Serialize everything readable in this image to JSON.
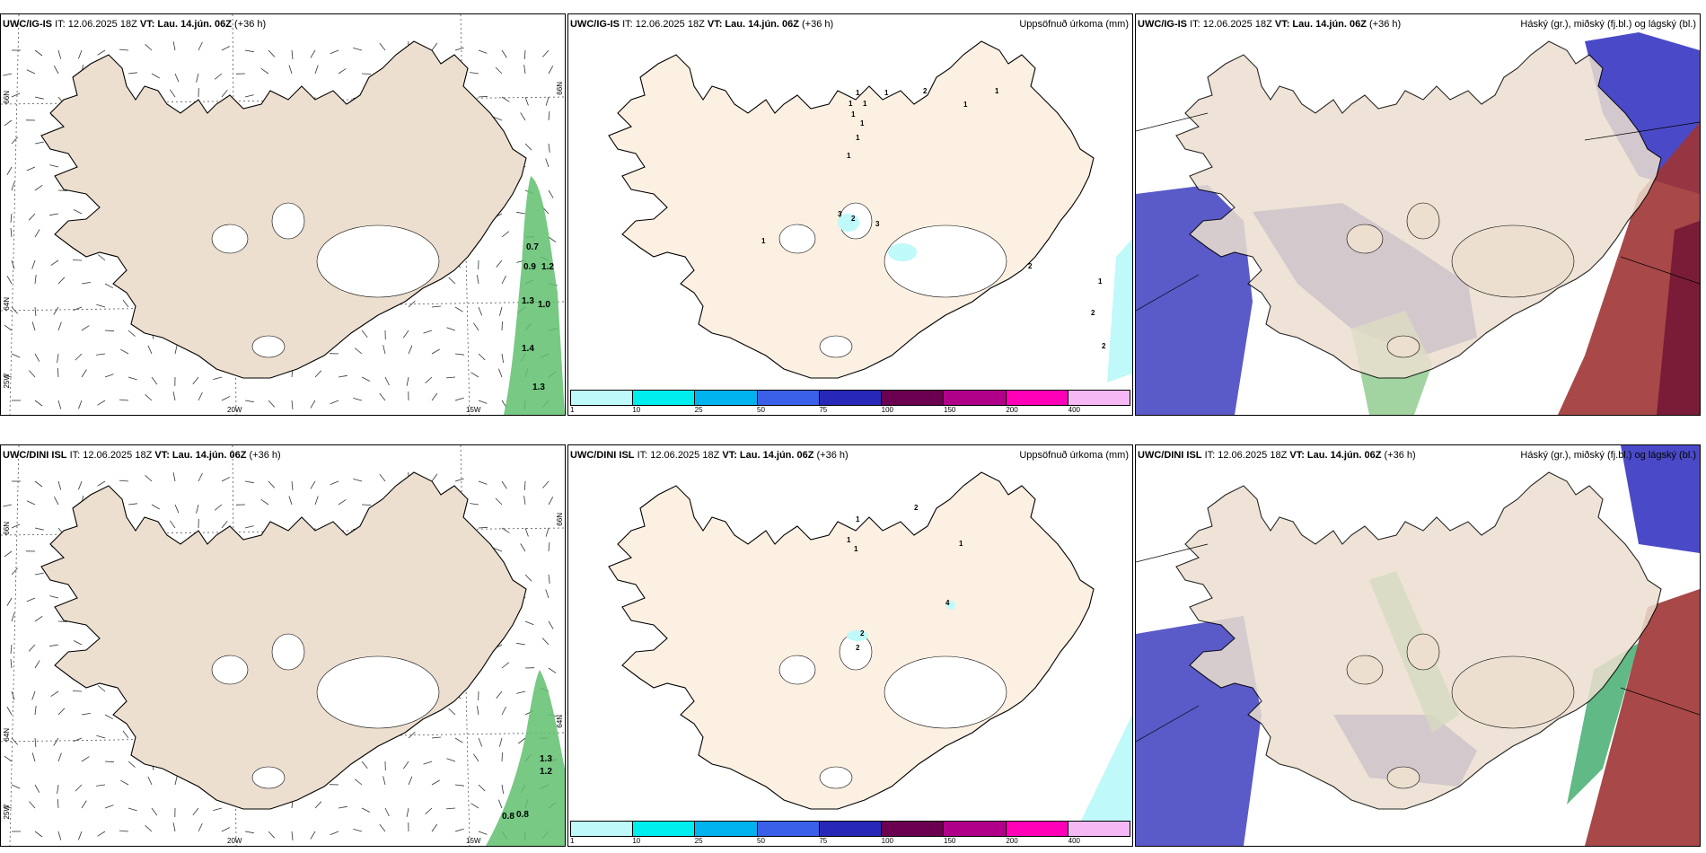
{
  "panels": [
    {
      "model": "UWC/IG-IS",
      "it": "IT: 12.06.2025 18Z",
      "vt_label": "VT:",
      "vt": "Lau. 14.jún. 06Z",
      "lead": "(+36 h)",
      "title": "",
      "kind": "wind"
    },
    {
      "model": "UWC/IG-IS",
      "it": "IT: 12.06.2025 18Z",
      "vt_label": "VT:",
      "vt": "Lau. 14.jún. 06Z",
      "lead": "(+36 h)",
      "title": "Uppsöfnuð úrkoma (mm)",
      "kind": "precip"
    },
    {
      "model": "UWC/IG-IS",
      "it": "IT: 12.06.2025 18Z",
      "vt_label": "VT:",
      "vt": "Lau. 14.jún. 06Z",
      "lead": "(+36 h)",
      "title": "Háský (gr.), miðský (fj.bl.) og lágský (bl.)",
      "kind": "cloud"
    },
    {
      "model": "UWC/DINI ISL",
      "it": "IT: 12.06.2025 18Z",
      "vt_label": "VT:",
      "vt": "Lau. 14.jún. 06Z",
      "lead": "(+36 h)",
      "title": "",
      "kind": "wind"
    },
    {
      "model": "UWC/DINI ISL",
      "it": "IT: 12.06.2025 18Z",
      "vt_label": "VT:",
      "vt": "Lau. 14.jún. 06Z",
      "lead": "(+36 h)",
      "title": "Uppsöfnuð úrkoma (mm)",
      "kind": "precip"
    },
    {
      "model": "UWC/DINI ISL",
      "it": "IT: 12.06.2025 18Z",
      "vt_label": "VT:",
      "vt": "Lau. 14.jún. 06Z",
      "lead": "(+36 h)",
      "title": "Háský (gr.), miðský (fj.bl.) og lágský (bl.)",
      "kind": "cloud"
    }
  ],
  "axes": {
    "lat66": "66N",
    "lat64": "64N",
    "lon25": "25W",
    "lon20": "20W",
    "lon15": "15W"
  },
  "wind_labels_top": [
    "0.7",
    "0.9",
    "1.2",
    "1.3",
    "1.0",
    "1.4",
    "1.3"
  ],
  "wind_labels_bottom": [
    "1.3",
    "1.2",
    "0.8",
    "0.8"
  ],
  "precip_legend": {
    "colors": [
      "#bff9f9",
      "#00eeee",
      "#00b2ee",
      "#3a5fe8",
      "#2828b8",
      "#6b0050",
      "#b0008a",
      "#ff00b8",
      "#f5b8f5"
    ],
    "ticks": [
      "1",
      "10",
      "25",
      "50",
      "75",
      "100",
      "150",
      "200",
      "400"
    ]
  },
  "precip_labels_top": [
    "1",
    "1",
    "1",
    "1",
    "1",
    "1",
    "1",
    "1",
    "2",
    "1",
    "1",
    "2",
    "3",
    "3",
    "2",
    "1",
    "1",
    "2",
    "2"
  ],
  "precip_labels_bottom": [
    "1",
    "2",
    "1",
    "1",
    "1",
    "4",
    "2",
    "2"
  ],
  "colors": {
    "land_wind": "#ecdfcf",
    "land_precip": "#fcf0e2",
    "land_cloud": "#ecdfcf",
    "low_cloud": "#5a5ac8",
    "mid_cloud": "#2e3ad8",
    "high_cloud": "#9e3434",
    "green": "#5fbf6f"
  }
}
